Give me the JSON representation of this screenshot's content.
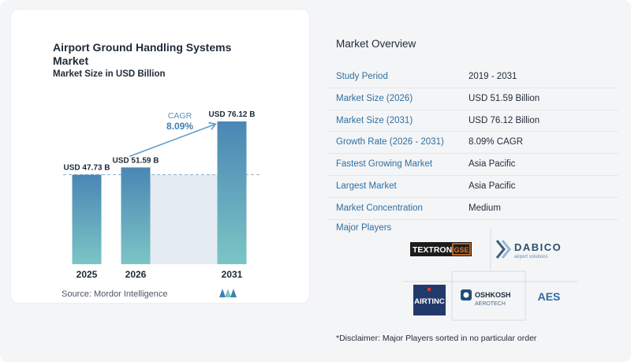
{
  "chart_data": {
    "type": "bar",
    "title": "Airport Ground Handling Systems Market",
    "subtitle": "Market Size in USD Billion",
    "categories": [
      "2025",
      "2026",
      "2031"
    ],
    "values": [
      47.73,
      51.59,
      76.12
    ],
    "data_labels": [
      "USD 47.73 B",
      "USD 51.59 B",
      "USD 76.12 B"
    ],
    "cagr_label": "CAGR",
    "cagr_value": "8.09%",
    "bar_color_top": "#4a86b4",
    "bar_color_bottom": "#7cc5c6",
    "grid": false,
    "ylim": [
      0,
      80
    ]
  },
  "source": "Source:  Mordor Intelligence",
  "overview": {
    "title": "Market Overview",
    "rows": [
      {
        "label": "Study Period",
        "value": "2019 - 2031"
      },
      {
        "label": "Market Size (2026)",
        "value": "USD 51.59 Billion"
      },
      {
        "label": "Market Size (2031)",
        "value": "USD 76.12 Billion"
      },
      {
        "label": "Growth Rate (2026 - 2031)",
        "value": "8.09% CAGR"
      },
      {
        "label": "Fastest Growing Market",
        "value": "Asia Pacific"
      },
      {
        "label": "Largest Market",
        "value": "Asia Pacific"
      },
      {
        "label": "Market Concentration",
        "value": "Medium"
      }
    ]
  },
  "players": {
    "title": "Major Players",
    "logos": {
      "textron": {
        "text": "TEXTRON",
        "badge": "GSE"
      },
      "dabico": {
        "text": "DABICO",
        "sub": "airport solutions"
      },
      "airtinc": {
        "text": "AIRTINC"
      },
      "oshkosh": {
        "text": "OSHKOSH",
        "sub": "AEROTECH"
      },
      "aes": {
        "text": "AES"
      }
    }
  },
  "disclaimer": "*Disclaimer: Major Players sorted in no particular order"
}
